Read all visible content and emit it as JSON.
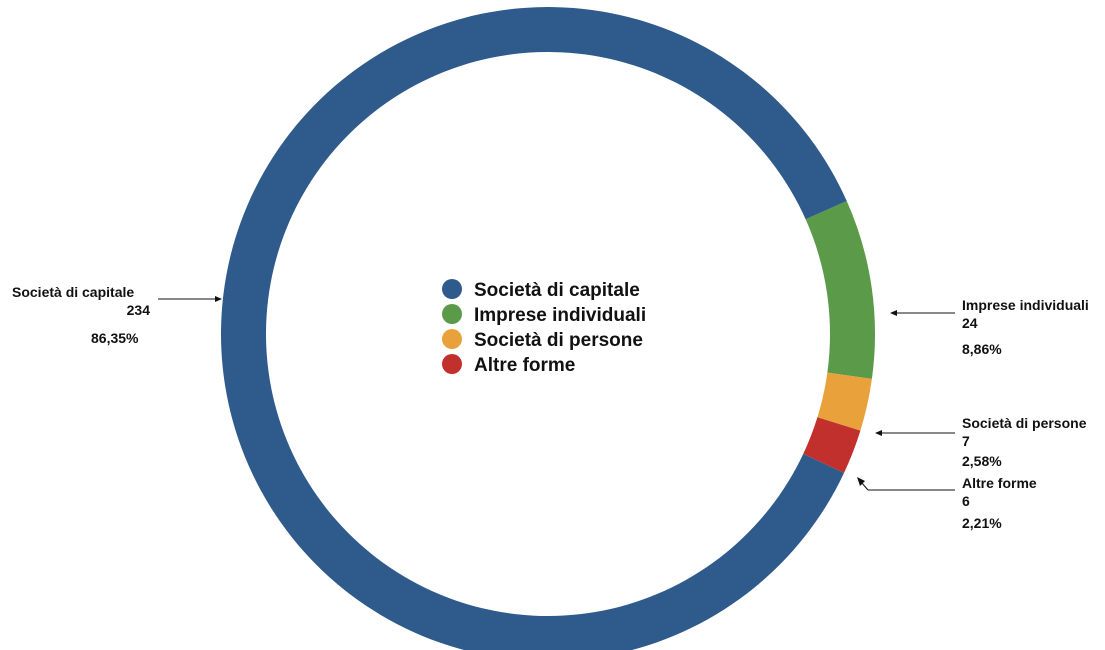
{
  "chart_data": {
    "type": "pie",
    "variant": "donut",
    "title": "",
    "categories": [
      "Società di capitale",
      "Imprese individuali",
      "Società di persone",
      "Altre forme"
    ],
    "values": [
      234,
      24,
      7,
      6
    ],
    "percent_labels": [
      "86,35%",
      "8,86%",
      "2,58%",
      "2,21%"
    ],
    "value_labels": [
      "234",
      "24",
      "7",
      "6"
    ],
    "colors": [
      "#2f5a8c",
      "#5b9a48",
      "#e9a23b",
      "#c2302e"
    ],
    "legend": {
      "placement": "center",
      "entries": [
        "Società di capitale",
        "Imprese individuali",
        "Società di persone",
        "Altre forme"
      ]
    }
  }
}
